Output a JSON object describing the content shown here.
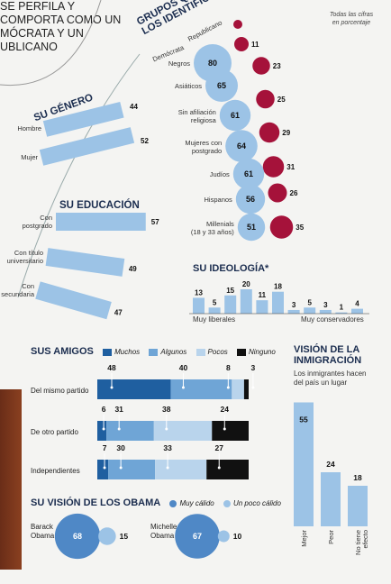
{
  "colors": {
    "light_blue": "#9cc3e6",
    "dark_blue": "#1f5fa0",
    "mid_blue": "#6fa5d6",
    "pale_blue": "#b9d4ec",
    "crimson": "#a5123a",
    "black": "#111111",
    "heading": "#1b2d4f"
  },
  "intro": {
    "lines": [
      "SE PERFILA Y",
      "COMPORTA COMO UN",
      "MÓCRATA Y UN",
      "UBLICANO"
    ]
  },
  "note": {
    "lines": [
      "Todas las cifras",
      "en porcentaje"
    ]
  },
  "grupos": {
    "title_lines": [
      "GRUPOS QUE MÁS",
      "LOS IDENTIFICAN"
    ],
    "legend_dem": "Demócrata",
    "legend_rep": "Republicano",
    "rows": [
      {
        "label": [
          "Negros"
        ],
        "dem": 80,
        "rep": 23
      },
      {
        "label": [
          "Asiáticos"
        ],
        "dem": 65,
        "rep": 25
      },
      {
        "label": [
          "Sin afiliación",
          "religiosa"
        ],
        "dem": 61,
        "rep": 29
      },
      {
        "label": [
          "Mujeres con",
          "postgrado"
        ],
        "dem": 64,
        "rep": 31
      },
      {
        "label": [
          "Judíos"
        ],
        "dem": 61,
        "rep": 26
      },
      {
        "label": [
          "Hispanos"
        ],
        "dem": 56,
        "rep": 35
      },
      {
        "label": [
          "Millenials",
          "(18 y 33 años)"
        ],
        "dem": 51,
        "rep": null
      }
    ],
    "header_rep": 11
  },
  "genero": {
    "title": "SU GÉNERO",
    "items": [
      {
        "label": "Hombre",
        "value": 44
      },
      {
        "label": "Mujer",
        "value": 52
      }
    ]
  },
  "educacion": {
    "title": "SU EDUCACIÓN",
    "items": [
      {
        "label": [
          "Con",
          "postgrado"
        ],
        "value": 57
      },
      {
        "label": [
          "Con título",
          "universitario"
        ],
        "value": 49
      },
      {
        "label": [
          "Con",
          "secundaria"
        ],
        "value": 47
      }
    ]
  },
  "chart_data": [
    {
      "type": "bar",
      "title": "SU IDEOLOGÍA*",
      "values": [
        13,
        5,
        15,
        20,
        11,
        18,
        3,
        5,
        3,
        1,
        4
      ],
      "xlabel_left": "Muy liberales",
      "xlabel_right": "Muy conservadores"
    },
    {
      "type": "bar",
      "title": "SUS AMIGOS",
      "legend": [
        "Muchos",
        "Algunos",
        "Pocos",
        "Ninguno"
      ],
      "categories": [
        "Del mismo partido",
        "De otro partido",
        "Independientes"
      ],
      "series": [
        {
          "name": "Muchos",
          "values": [
            48,
            6,
            7
          ]
        },
        {
          "name": "Algunos",
          "values": [
            40,
            31,
            30
          ]
        },
        {
          "name": "Pocos",
          "values": [
            8,
            38,
            33
          ]
        },
        {
          "name": "Ninguno",
          "values": [
            3,
            24,
            27
          ]
        }
      ]
    },
    {
      "type": "bar",
      "title": "VISIÓN DE LA INMIGRACIÓN",
      "subtitle_lines": [
        "Los inmigrantes hacen",
        "del país un lugar"
      ],
      "categories": [
        "Mejor",
        "Peor",
        "No tiene efecto"
      ],
      "values": [
        55,
        24,
        18
      ]
    },
    {
      "type": "bubble",
      "title": "SU VISIÓN DE LOS OBAMA",
      "legend": [
        "Muy cálido",
        "Un poco cálido"
      ],
      "items": [
        {
          "name": [
            "Barack",
            "Obama"
          ],
          "muy_calido": 68,
          "un_poco": 15
        },
        {
          "name": [
            "Michelle",
            "Obama"
          ],
          "muy_calido": 67,
          "un_poco": 10
        }
      ]
    }
  ]
}
